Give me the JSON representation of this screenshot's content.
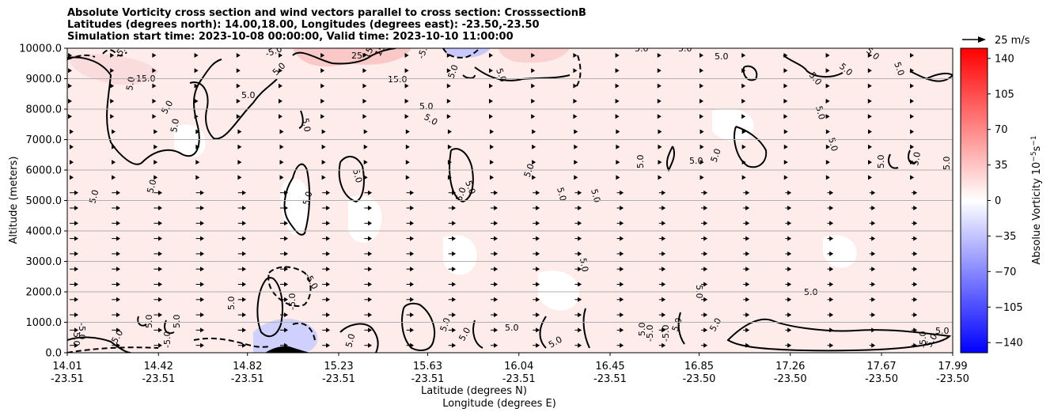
{
  "chart_data": {
    "type": "heatmap",
    "title_lines": [
      "Absolute Vorticity cross section and wind vectors parallel to cross section: CrosssectionB",
      "Latitudes (degrees north): 14.00,18.00, Longitudes (degrees east): -23.50,-23.50",
      "Simulation start time: 2023-10-08 00:00:00, Valid time: 2023-10-10 11:00:00"
    ],
    "ylabel": "Altitude (meters)",
    "xlabel_lines": [
      "Latitude (degrees N)",
      "Longitude (degrees E)"
    ],
    "y_ticks": [
      "0.0",
      "1000.0",
      "2000.0",
      "3000.0",
      "4000.0",
      "5000.0",
      "6000.0",
      "7000.0",
      "8000.0",
      "9000.0",
      "10000.0"
    ],
    "ylim": [
      0,
      10000
    ],
    "x_ticks": [
      {
        "lat": "14.01",
        "lon": "-23.51"
      },
      {
        "lat": "14.42",
        "lon": "-23.51"
      },
      {
        "lat": "14.82",
        "lon": "-23.51"
      },
      {
        "lat": "15.23",
        "lon": "-23.51"
      },
      {
        "lat": "15.63",
        "lon": "-23.51"
      },
      {
        "lat": "16.04",
        "lon": "-23.51"
      },
      {
        "lat": "16.45",
        "lon": "-23.51"
      },
      {
        "lat": "16.85",
        "lon": "-23.50"
      },
      {
        "lat": "17.26",
        "lon": "-23.50"
      },
      {
        "lat": "17.67",
        "lon": "-23.50"
      },
      {
        "lat": "17.99",
        "lon": "-23.50"
      }
    ],
    "xlim": [
      14.01,
      17.99
    ],
    "grid": "horizontal",
    "colorbar": {
      "label": "Absolue Vorticity 10",
      "label_exponent": "−5",
      "label_unit_tail": "s",
      "label_unit_exponent": "−1",
      "ticks": [
        "140",
        "105",
        "70",
        "35",
        "0",
        "−35",
        "−70",
        "−105",
        "−140"
      ],
      "range": [
        -150,
        150
      ],
      "colormap": "bwr",
      "colors": {
        "low": "#0000ff",
        "mid": "#ffffff",
        "high": "#ff0000"
      }
    },
    "quiver_key": {
      "label": "25 m/s",
      "value": 25
    },
    "contour_labels": [
      "5.0",
      "-5.0",
      "15.0",
      "25",
      "-15",
      "15.0"
    ],
    "colors": {
      "background_field": "#fdecea",
      "contour": "#000000",
      "terrain": "#000000",
      "grid": "#b0b0b0"
    }
  }
}
